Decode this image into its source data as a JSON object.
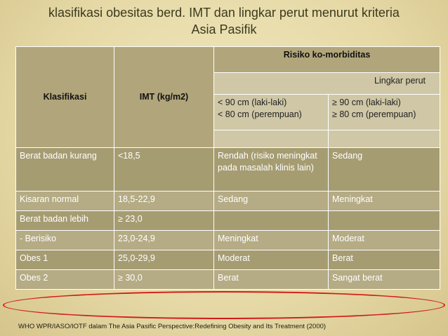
{
  "title": {
    "line1": "klasifikasi obesitas berd. IMT dan lingkar perut menurut kriteria",
    "line2": "Asia Pasifik"
  },
  "table": {
    "headers": {
      "klasifikasi": "Klasifikasi",
      "imt": "IMT (kg/m2)",
      "risiko": "Risiko ko-morbiditas",
      "lingkar": "Lingkar perut",
      "col_lt_1": "< 90 cm (laki-laki)",
      "col_lt_2": "< 80 cm (perempuan)",
      "col_ge_1": "≥ 90 cm (laki-laki)",
      "col_ge_2": "≥ 80 cm (perempuan)"
    },
    "rows": [
      {
        "klasifikasi": "Berat badan kurang",
        "imt": "<18,5",
        "risk_lt": "Rendah (risiko meningkat pada masalah klinis lain)",
        "risk_ge": "Sedang"
      },
      {
        "klasifikasi": "Kisaran normal",
        "imt": "18,5-22,9",
        "risk_lt": "Sedang",
        "risk_ge": "Meningkat"
      },
      {
        "klasifikasi": "Berat badan lebih",
        "imt": "≥ 23,0",
        "risk_lt": "",
        "risk_ge": ""
      },
      {
        "klasifikasi": "- Berisiko",
        "imt": "23,0-24,9",
        "risk_lt": "Meningkat",
        "risk_ge": "Moderat"
      },
      {
        "klasifikasi": "Obes 1",
        "imt": "25,0-29,9",
        "risk_lt": "Moderat",
        "risk_ge": "Berat"
      },
      {
        "klasifikasi": "Obes 2",
        "imt": "≥ 30,0",
        "risk_lt": "Berat",
        "risk_ge": "Sangat berat"
      }
    ]
  },
  "footnote": "WHO WPR/IASO/IOTF dalam The Asia Pasific Perspective:Redefining Obesity and Its Treatment (2000)",
  "colors": {
    "header_dark": "#b1a67b",
    "header_light": "#cfc7a6",
    "row_dark": "#a69c72",
    "row_light": "#b5ab84",
    "highlight": "#d21b1b"
  }
}
